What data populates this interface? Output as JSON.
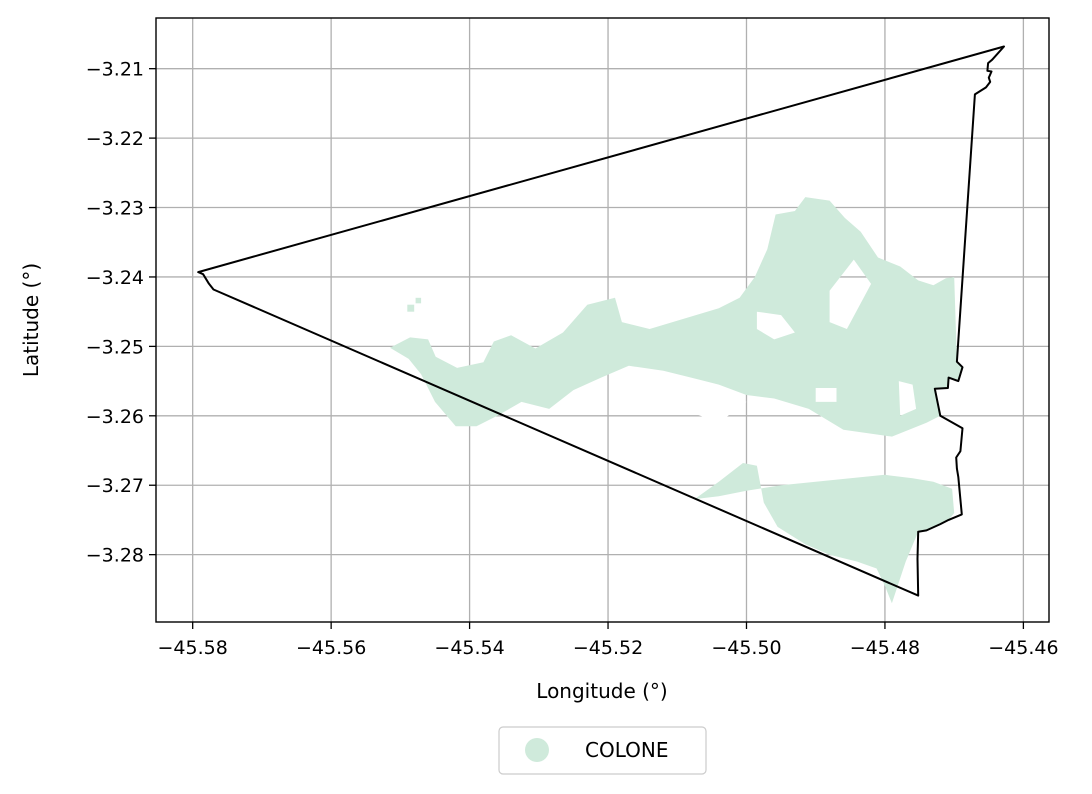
{
  "chart_data": {
    "type": "map",
    "xlabel": "Longitude (°)",
    "ylabel": "Latitude (°)",
    "xlim": [
      -45.5853,
      -45.4563
    ],
    "ylim": [
      -3.2897,
      -3.2027
    ],
    "grid": true,
    "x_ticks": [
      -45.58,
      -45.56,
      -45.54,
      -45.52,
      -45.5,
      -45.48,
      -45.46
    ],
    "y_ticks": [
      -3.21,
      -3.22,
      -3.23,
      -3.24,
      -3.25,
      -3.26,
      -3.27,
      -3.28
    ],
    "x_tick_labels": [
      "−45.58",
      "−45.56",
      "−45.54",
      "−45.52",
      "−45.50",
      "−45.48",
      "−45.46"
    ],
    "y_tick_labels": [
      "−3.21",
      "−3.22",
      "−3.23",
      "−3.24",
      "−3.25",
      "−3.26",
      "−3.27",
      "−3.28"
    ],
    "legend": {
      "placement": "bottom-center",
      "entries": [
        {
          "label": "COLONE",
          "color": "#cfeadb"
        }
      ]
    },
    "boundary": {
      "color": "#000000",
      "points": [
        [
          -45.5792,
          -3.2393
        ],
        [
          -45.4628,
          -3.2068
        ],
        [
          -45.4645,
          -3.2087
        ],
        [
          -45.4651,
          -3.2092
        ],
        [
          -45.4652,
          -3.2103
        ],
        [
          -45.4646,
          -3.2104
        ],
        [
          -45.465,
          -3.2113
        ],
        [
          -45.4648,
          -3.2119
        ],
        [
          -45.4654,
          -3.2127
        ],
        [
          -45.467,
          -3.2137
        ],
        [
          -45.4696,
          -3.2522
        ],
        [
          -45.4688,
          -3.253
        ],
        [
          -45.4694,
          -3.255
        ],
        [
          -45.4708,
          -3.2545
        ],
        [
          -45.4709,
          -3.256
        ],
        [
          -45.4728,
          -3.2561
        ],
        [
          -45.472,
          -3.26
        ],
        [
          -45.4688,
          -3.2618
        ],
        [
          -45.4691,
          -3.2651
        ],
        [
          -45.4697,
          -3.266
        ],
        [
          -45.4696,
          -3.2676
        ],
        [
          -45.4694,
          -3.2688
        ],
        [
          -45.4689,
          -3.2742
        ],
        [
          -45.4708,
          -3.275
        ],
        [
          -45.472,
          -3.2756
        ],
        [
          -45.474,
          -3.2765
        ],
        [
          -45.4752,
          -3.2767
        ],
        [
          -45.4753,
          -3.2806
        ],
        [
          -45.4752,
          -3.2859
        ],
        [
          -45.577,
          -3.2418
        ],
        [
          -45.5777,
          -3.2409
        ],
        [
          -45.5785,
          -3.2396
        ]
      ]
    },
    "colone_main": [
      [
        -45.5515,
        -3.2502
      ],
      [
        -45.5486,
        -3.2487
      ],
      [
        -45.546,
        -3.249
      ],
      [
        -45.5449,
        -3.2515
      ],
      [
        -45.5418,
        -3.2531
      ],
      [
        -45.538,
        -3.2523
      ],
      [
        -45.5365,
        -3.2493
      ],
      [
        -45.534,
        -3.2484
      ],
      [
        -45.5305,
        -3.2503
      ],
      [
        -45.5265,
        -3.248
      ],
      [
        -45.523,
        -3.244
      ],
      [
        -45.519,
        -3.243
      ],
      [
        -45.518,
        -3.2465
      ],
      [
        -45.514,
        -3.2475
      ],
      [
        -45.509,
        -3.246
      ],
      [
        -45.504,
        -3.2445
      ],
      [
        -45.501,
        -3.243
      ],
      [
        -45.4988,
        -3.24
      ],
      [
        -45.497,
        -3.236
      ],
      [
        -45.4958,
        -3.231
      ],
      [
        -45.493,
        -3.2305
      ],
      [
        -45.4915,
        -3.2285
      ],
      [
        -45.488,
        -3.229
      ],
      [
        -45.4858,
        -3.2315
      ],
      [
        -45.4835,
        -3.2335
      ],
      [
        -45.481,
        -3.2372
      ],
      [
        -45.4778,
        -3.2385
      ],
      [
        -45.4752,
        -3.2405
      ],
      [
        -45.473,
        -3.2412
      ],
      [
        -45.4712,
        -3.2402
      ],
      [
        -45.47,
        -3.24
      ],
      [
        -45.4696,
        -3.2522
      ],
      [
        -45.4688,
        -3.253
      ],
      [
        -45.4694,
        -3.255
      ],
      [
        -45.4708,
        -3.2545
      ],
      [
        -45.4709,
        -3.256
      ],
      [
        -45.4728,
        -3.2561
      ],
      [
        -45.472,
        -3.26
      ],
      [
        -45.474,
        -3.261
      ],
      [
        -45.479,
        -3.263
      ],
      [
        -45.486,
        -3.262
      ],
      [
        -45.491,
        -3.259
      ],
      [
        -45.496,
        -3.2575
      ],
      [
        -45.5,
        -3.257
      ],
      [
        -45.504,
        -3.2555
      ],
      [
        -45.508,
        -3.2545
      ],
      [
        -45.512,
        -3.2535
      ],
      [
        -45.517,
        -3.2528
      ],
      [
        -45.521,
        -3.2545
      ],
      [
        -45.525,
        -3.2563
      ],
      [
        -45.5285,
        -3.259
      ],
      [
        -45.5325,
        -3.258
      ],
      [
        -45.536,
        -3.26
      ],
      [
        -45.539,
        -3.2615
      ],
      [
        -45.542,
        -3.2615
      ],
      [
        -45.545,
        -3.258
      ],
      [
        -45.547,
        -3.254
      ],
      [
        -45.5488,
        -3.2518
      ]
    ],
    "colone_notch": [
      [
        -45.518,
        -3.254
      ],
      [
        -45.5,
        -3.258
      ],
      [
        -45.504,
        -3.261
      ],
      [
        -45.508,
        -3.2595
      ],
      [
        -45.512,
        -3.257
      ],
      [
        -45.516,
        -3.2555
      ]
    ],
    "colone_lower": [
      [
        -45.5075,
        -3.272
      ],
      [
        -45.504,
        -3.2695
      ],
      [
        -45.5005,
        -3.2668
      ],
      [
        -45.4985,
        -3.2672
      ],
      [
        -45.4975,
        -3.2725
      ],
      [
        -45.4955,
        -3.276
      ],
      [
        -45.4915,
        -3.2785
      ],
      [
        -45.488,
        -3.28
      ],
      [
        -45.484,
        -3.281
      ],
      [
        -45.4812,
        -3.282
      ],
      [
        -45.48,
        -3.2845
      ],
      [
        -45.479,
        -3.287
      ],
      [
        -45.477,
        -3.281
      ],
      [
        -45.4752,
        -3.2767
      ],
      [
        -45.474,
        -3.2765
      ],
      [
        -45.472,
        -3.2756
      ],
      [
        -45.4708,
        -3.275
      ],
      [
        -45.47,
        -3.274
      ],
      [
        -45.4703,
        -3.2705
      ],
      [
        -45.473,
        -3.2695
      ],
      [
        -45.476,
        -3.269
      ],
      [
        -45.48,
        -3.2685
      ],
      [
        -45.485,
        -3.269
      ],
      [
        -45.49,
        -3.2695
      ],
      [
        -45.495,
        -3.27
      ],
      [
        -45.5,
        -3.2708
      ],
      [
        -45.504,
        -3.2716
      ]
    ],
    "colone_islands": [
      [
        [
          -45.549,
          -3.244
        ],
        [
          -45.548,
          -3.244
        ],
        [
          -45.548,
          -3.245
        ],
        [
          -45.549,
          -3.245
        ]
      ],
      [
        [
          -45.5478,
          -3.243
        ],
        [
          -45.547,
          -3.243
        ],
        [
          -45.547,
          -3.2438
        ],
        [
          -45.5478,
          -3.2438
        ]
      ]
    ],
    "colone_holes": [
      [
        [
          -45.488,
          -3.242
        ],
        [
          -45.4845,
          -3.2375
        ],
        [
          -45.482,
          -3.241
        ],
        [
          -45.4855,
          -3.2475
        ],
        [
          -45.488,
          -3.2465
        ]
      ],
      [
        [
          -45.4985,
          -3.245
        ],
        [
          -45.495,
          -3.2455
        ],
        [
          -45.493,
          -3.248
        ],
        [
          -45.496,
          -3.249
        ],
        [
          -45.4985,
          -3.2475
        ]
      ],
      [
        [
          -45.478,
          -3.255
        ],
        [
          -45.476,
          -3.2555
        ],
        [
          -45.4755,
          -3.259
        ],
        [
          -45.4778,
          -3.26
        ]
      ],
      [
        [
          -45.49,
          -3.256
        ],
        [
          -45.487,
          -3.256
        ],
        [
          -45.487,
          -3.258
        ],
        [
          -45.49,
          -3.258
        ]
      ]
    ]
  }
}
